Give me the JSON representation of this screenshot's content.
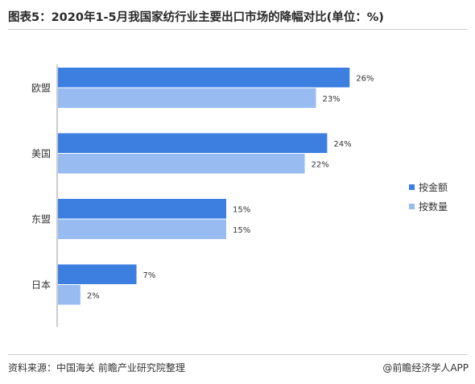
{
  "header": {
    "title": "图表5：2020年1-5月我国家纺行业主要出口市场的降幅对比(单位：%)"
  },
  "footer": {
    "source": "资料来源：中国海关 前瞻产业研究院整理",
    "brand": "@前瞻经济学人APP"
  },
  "colors": {
    "series1": "#3d7fe0",
    "series2": "#98bcf2",
    "axis": "#9a9a9a"
  },
  "chart_data": {
    "type": "bar",
    "orientation": "horizontal",
    "title": "图表5：2020年1-5月我国家纺行业主要出口市场的降幅对比(单位：%)",
    "categories": [
      "欧盟",
      "美国",
      "东盟",
      "日本"
    ],
    "series": [
      {
        "name": "按金额",
        "values": [
          26,
          24,
          15,
          7
        ],
        "labels": [
          "26%",
          "24%",
          "15%",
          "7%"
        ]
      },
      {
        "name": "按数量",
        "values": [
          23,
          22,
          15,
          2
        ],
        "labels": [
          "23%",
          "22%",
          "15%",
          "2%"
        ]
      }
    ],
    "xlim": [
      0,
      30
    ],
    "grid": false,
    "legend": "right"
  }
}
